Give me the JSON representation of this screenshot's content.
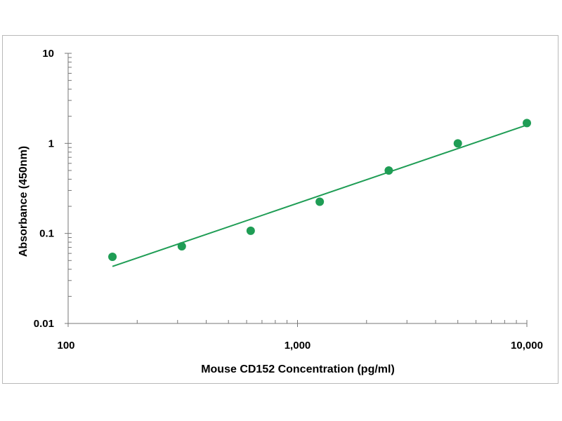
{
  "chart_data": {
    "type": "scatter",
    "title": "",
    "xlabel": "Mouse CD152 Concentration (pg/ml)",
    "ylabel": "Absorbance (450nm)",
    "x_scale": "log",
    "y_scale": "log",
    "xlim": [
      100,
      10000
    ],
    "ylim": [
      0.01,
      10
    ],
    "x_ticks": [
      100,
      1000,
      10000
    ],
    "x_tick_labels": [
      "100",
      "1,000",
      "10,000"
    ],
    "y_ticks": [
      0.01,
      0.1,
      1,
      10
    ],
    "y_tick_labels": [
      "0.01",
      "0.1",
      "1",
      "10"
    ],
    "grid": false,
    "legend": "none",
    "series": [
      {
        "x": [
          156,
          313,
          625,
          1250,
          2500,
          5000,
          10000
        ],
        "y": [
          0.055,
          0.072,
          0.107,
          0.225,
          0.5,
          1.0,
          1.68
        ]
      }
    ],
    "fit_line": {
      "x": [
        156,
        10000
      ],
      "y": [
        0.043,
        1.6
      ]
    },
    "colors": {
      "points": "#1f9d55",
      "line": "#1f9d55",
      "axis": "#777777"
    }
  }
}
